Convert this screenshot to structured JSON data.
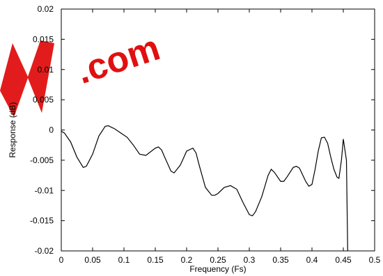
{
  "watermark": {
    "text": ".com",
    "color": "#e01010"
  },
  "chart_data": {
    "type": "line",
    "title": "",
    "xlabel": "Frequency (Fs)",
    "ylabel": "Response (dB)",
    "xlim": [
      0,
      0.5
    ],
    "ylim": [
      -0.02,
      0.02
    ],
    "xticks": [
      0,
      0.05,
      0.1,
      0.15,
      0.2,
      0.25,
      0.3,
      0.35,
      0.4,
      0.45,
      0.5
    ],
    "xtick_labels": [
      "0",
      "0.05",
      "0.1",
      "0.15",
      "0.2",
      "0.25",
      "0.3",
      "0.35",
      "0.4",
      "0.45",
      "0.5"
    ],
    "yticks": [
      -0.02,
      -0.015,
      -0.01,
      -0.005,
      0,
      0.005,
      0.01,
      0.015,
      0.02
    ],
    "ytick_labels": [
      "-0.02",
      "-0.015",
      "-0.01",
      "-0.005",
      "0",
      "0.005",
      "0.01",
      "0.015",
      "0.02"
    ],
    "grid": false,
    "line_color": "#000000",
    "series": [
      {
        "x": [
          0,
          0.005,
          0.015,
          0.025,
          0.035,
          0.04,
          0.05,
          0.06,
          0.07,
          0.075,
          0.085,
          0.095,
          0.105,
          0.115,
          0.125,
          0.135,
          0.14,
          0.15,
          0.155,
          0.16,
          0.165,
          0.175,
          0.18,
          0.19,
          0.2,
          0.21,
          0.215,
          0.22,
          0.23,
          0.24,
          0.245,
          0.25,
          0.26,
          0.27,
          0.28,
          0.29,
          0.3,
          0.305,
          0.31,
          0.32,
          0.33,
          0.335,
          0.34,
          0.35,
          0.355,
          0.36,
          0.37,
          0.375,
          0.38,
          0.39,
          0.395,
          0.4,
          0.405,
          0.41,
          0.415,
          0.42,
          0.425,
          0.43,
          0.435,
          0.44,
          0.443,
          0.447,
          0.45,
          0.455,
          0.457
        ],
        "y": [
          -0.0002,
          -0.0005,
          -0.002,
          -0.0045,
          -0.0062,
          -0.006,
          -0.004,
          -0.001,
          0.0006,
          0.0007,
          0.0002,
          -0.0005,
          -0.0012,
          -0.0025,
          -0.004,
          -0.0042,
          -0.0038,
          -0.003,
          -0.0028,
          -0.0033,
          -0.0045,
          -0.0068,
          -0.0071,
          -0.0058,
          -0.0035,
          -0.003,
          -0.0038,
          -0.0058,
          -0.0095,
          -0.0108,
          -0.0108,
          -0.0105,
          -0.0095,
          -0.0092,
          -0.0098,
          -0.012,
          -0.014,
          -0.0142,
          -0.0135,
          -0.011,
          -0.0075,
          -0.0065,
          -0.007,
          -0.0085,
          -0.0085,
          -0.0078,
          -0.0062,
          -0.006,
          -0.0063,
          -0.0085,
          -0.0093,
          -0.009,
          -0.0065,
          -0.0035,
          -0.0013,
          -0.0012,
          -0.0022,
          -0.0045,
          -0.0065,
          -0.0078,
          -0.008,
          -0.005,
          -0.0015,
          -0.005,
          -0.02
        ]
      }
    ]
  }
}
